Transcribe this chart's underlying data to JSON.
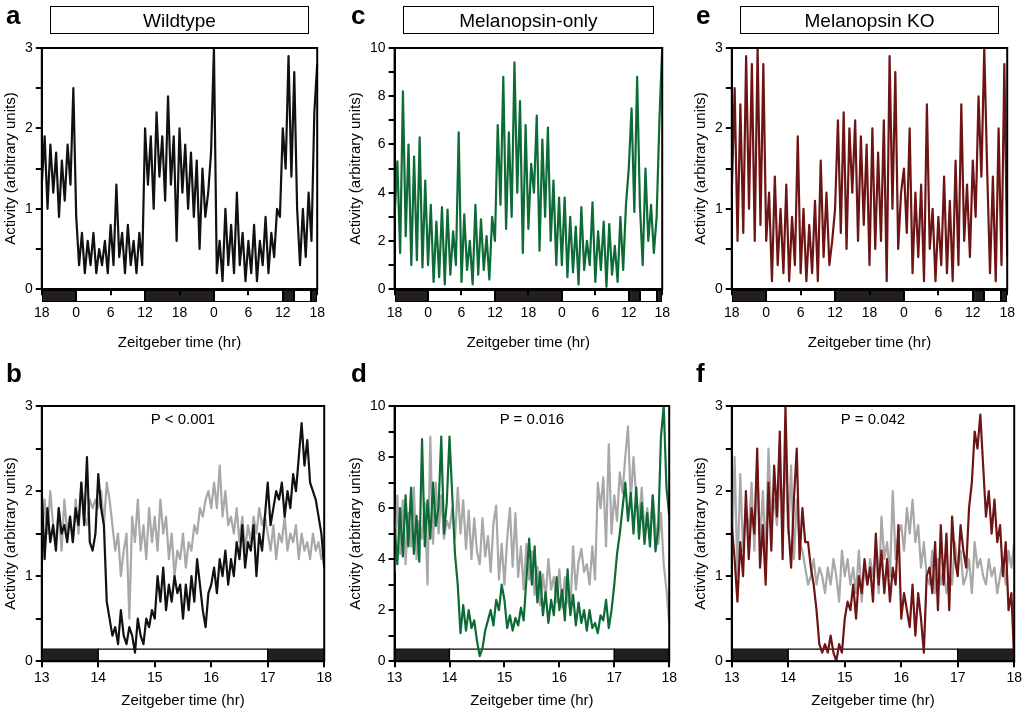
{
  "chart_data": [
    {
      "type": "line",
      "title": "Wildtype",
      "annotations": [
        "a"
      ],
      "xlabel": "Zeitgeber time (hr)",
      "ylabel": "Activity (arbitrary units)",
      "grid": false,
      "categories": [
        "18",
        null,
        null,
        null,
        null,
        null,
        null,
        null,
        null,
        null,
        null,
        null,
        "0",
        null,
        null,
        null,
        null,
        null,
        null,
        null,
        null,
        null,
        null,
        null,
        "6",
        null,
        null,
        null,
        null,
        null,
        null,
        null,
        null,
        null,
        null,
        null,
        "12",
        null,
        null,
        null,
        null,
        null,
        null,
        null,
        null,
        null,
        null,
        null,
        "18",
        null,
        null,
        null,
        null,
        null,
        null,
        null,
        null,
        null,
        null,
        null,
        "0",
        null,
        null,
        null,
        null,
        null,
        null,
        null,
        null,
        null,
        null,
        null,
        "6",
        null,
        null,
        null,
        null,
        null,
        null,
        null,
        null,
        null,
        null,
        null,
        "12",
        null,
        null,
        null,
        null,
        null,
        null,
        null,
        null,
        null,
        null,
        null,
        "18"
      ],
      "ylim": [
        0,
        3
      ],
      "yticks": [
        0,
        {
          "value": 0.5,
          "label": null
        },
        1,
        {
          "value": 1.5,
          "label": null
        },
        2,
        {
          "value": 2.5,
          "label": null
        },
        3
      ],
      "series": [
        {
          "color": "#111111",
          "values": [
            1.3,
            1.9,
            1.0,
            1.8,
            1.2,
            1.7,
            0.9,
            1.6,
            1.1,
            1.8,
            1.3,
            2.5,
            0.9,
            0.3,
            0.7,
            0.2,
            0.6,
            0.3,
            0.7,
            0.2,
            0.5,
            0.3,
            0.6,
            0.2,
            0.8,
            0.3,
            1.3,
            0.4,
            0.7,
            0.2,
            0.8,
            0.3,
            0.6,
            0.2,
            0.7,
            0.3,
            2.0,
            1.3,
            1.9,
            1.0,
            2.2,
            1.4,
            1.9,
            1.1,
            2.4,
            1.3,
            1.9,
            0.6,
            2.0,
            1.2,
            1.8,
            1.0,
            1.7,
            0.9,
            1.6,
            0.5,
            1.5,
            0.9,
            1.2,
            1.7,
            3.0,
            0.2,
            0.6,
            0.1,
            1.0,
            0.3,
            0.8,
            0.2,
            1.2,
            0.3,
            0.7,
            0.1,
            0.6,
            0.2,
            0.8,
            0.1,
            0.6,
            0.3,
            0.9,
            0.2,
            0.7,
            0.4,
            1.0,
            0.9,
            2.0,
            1.5,
            2.9,
            1.4,
            2.7,
            1.0,
            0.3,
            1.0,
            0.4,
            1.2,
            0.6,
            2.2,
            2.8
          ]
        }
      ]
    },
    {
      "type": "line",
      "title": "Melanopsin-only",
      "annotations": [
        "c"
      ],
      "xlabel": "Zeitgeber time (hr)",
      "ylabel": "Activity (arbitrary units)",
      "grid": false,
      "categories": [
        "18",
        null,
        null,
        null,
        null,
        null,
        null,
        null,
        null,
        null,
        null,
        null,
        "0",
        null,
        null,
        null,
        null,
        null,
        null,
        null,
        null,
        null,
        null,
        null,
        "6",
        null,
        null,
        null,
        null,
        null,
        null,
        null,
        null,
        null,
        null,
        null,
        "12",
        null,
        null,
        null,
        null,
        null,
        null,
        null,
        null,
        null,
        null,
        null,
        "18",
        null,
        null,
        null,
        null,
        null,
        null,
        null,
        null,
        null,
        null,
        null,
        "0",
        null,
        null,
        null,
        null,
        null,
        null,
        null,
        null,
        null,
        null,
        null,
        "6",
        null,
        null,
        null,
        null,
        null,
        null,
        null,
        null,
        null,
        null,
        null,
        "12",
        null,
        null,
        null,
        null,
        null,
        null,
        null,
        null,
        null,
        null,
        null,
        "18"
      ],
      "ylim": [
        0,
        10
      ],
      "yticks": [
        0,
        {
          "value": 1,
          "label": null
        },
        2,
        {
          "value": 3,
          "label": null
        },
        4,
        {
          "value": 5,
          "label": null
        },
        6,
        {
          "value": 7,
          "label": null
        },
        8,
        {
          "value": 9,
          "label": null
        },
        10
      ],
      "series": [
        {
          "color": "#0d6b35",
          "values": [
            3.0,
            5.3,
            1.5,
            8.2,
            2.2,
            6.0,
            1.0,
            5.5,
            1.2,
            6.3,
            0.9,
            4.5,
            1.0,
            3.5,
            0.3,
            2.8,
            0.5,
            3.4,
            0.2,
            3.3,
            0.6,
            2.4,
            1.0,
            6.5,
            0.3,
            3.1,
            0.8,
            2.0,
            0.2,
            3.5,
            0.6,
            2.9,
            0.8,
            2.2,
            0.4,
            3.0,
            2.0,
            6.8,
            3.5,
            8.8,
            2.5,
            6.5,
            3.0,
            9.4,
            4.0,
            7.8,
            1.5,
            6.8,
            2.5,
            5.2,
            4.0,
            7.2,
            1.6,
            6.2,
            3.0,
            6.7,
            2.0,
            4.5,
            1.0,
            3.8,
            1.0,
            3.8,
            0.5,
            3.0,
            0.7,
            2.6,
            0.2,
            3.4,
            0.8,
            2.0,
            1.0,
            3.6,
            0.3,
            2.4,
            0.8,
            2.8,
            0.1,
            2.7,
            0.6,
            1.8,
            0.3,
            3.0,
            0.8,
            3.5,
            5.0,
            7.5,
            3.2,
            8.8,
            3.5,
            1.0,
            5.0,
            2.0,
            3.5,
            1.5,
            3.0,
            7.0,
            10.0
          ]
        }
      ]
    },
    {
      "type": "line",
      "title": "Melanopsin KO",
      "annotations": [
        "e"
      ],
      "xlabel": "Zeitgeber time (hr)",
      "ylabel": "Activity (arbitrary units)",
      "grid": false,
      "categories": [
        "18",
        null,
        null,
        null,
        null,
        null,
        null,
        null,
        null,
        null,
        null,
        null,
        "0",
        null,
        null,
        null,
        null,
        null,
        null,
        null,
        null,
        null,
        null,
        null,
        "6",
        null,
        null,
        null,
        null,
        null,
        null,
        null,
        null,
        null,
        null,
        null,
        "12",
        null,
        null,
        null,
        null,
        null,
        null,
        null,
        null,
        null,
        null,
        null,
        "18",
        null,
        null,
        null,
        null,
        null,
        null,
        null,
        null,
        null,
        null,
        null,
        "0",
        null,
        null,
        null,
        null,
        null,
        null,
        null,
        null,
        null,
        null,
        null,
        "6",
        null,
        null,
        null,
        null,
        null,
        null,
        null,
        null,
        null,
        null,
        null,
        "12",
        null,
        null,
        null,
        null,
        null,
        null,
        null,
        null,
        null,
        null,
        null,
        "18"
      ],
      "ylim": [
        0,
        3
      ],
      "yticks": [
        0,
        {
          "value": 0.5,
          "label": null
        },
        1,
        {
          "value": 1.5,
          "label": null
        },
        2,
        {
          "value": 2.5,
          "label": null
        },
        3
      ],
      "series": [
        {
          "color": "#6e1414",
          "values": [
            1.2,
            2.5,
            0.6,
            2.3,
            0.7,
            2.9,
            1.0,
            2.8,
            0.6,
            3.0,
            0.8,
            2.8,
            0.6,
            1.2,
            0.1,
            1.4,
            0.3,
            1.0,
            0.2,
            1.3,
            0.1,
            0.9,
            0.3,
            1.9,
            0.2,
            1.0,
            0.1,
            0.8,
            0.2,
            1.1,
            0.1,
            1.6,
            0.4,
            1.2,
            0.3,
            0.6,
            1.0,
            2.1,
            0.7,
            2.2,
            0.5,
            2.0,
            1.2,
            2.1,
            0.6,
            1.9,
            0.8,
            1.8,
            0.3,
            2.0,
            0.5,
            1.7,
            0.6,
            2.1,
            0.1,
            2.9,
            1.0,
            2.7,
            0.5,
            1.2,
            1.5,
            0.7,
            2.0,
            0.2,
            1.2,
            0.4,
            1.3,
            0.1,
            2.3,
            0.5,
            1.0,
            0.1,
            0.9,
            0.3,
            1.4,
            0.2,
            1.1,
            0.1,
            1.6,
            0.3,
            2.3,
            0.6,
            1.3,
            0.4,
            1.6,
            0.9,
            2.4,
            1.4,
            3.0,
            1.5,
            0.2,
            1.4,
            0.1,
            2.0,
            0.3,
            2.8,
            0.4
          ]
        }
      ]
    },
    {
      "type": "line",
      "annotations": [
        "b",
        "P < 0.001"
      ],
      "xlabel": "Zeitgeber time (hr)",
      "ylabel": "Activity (arbitrary units)",
      "grid": false,
      "x": [
        13,
        13.05,
        13.1,
        13.15,
        13.2,
        13.25,
        13.3,
        13.35,
        13.4,
        13.45,
        13.5,
        13.55,
        13.6,
        13.65,
        13.7,
        13.75,
        13.8,
        13.85,
        13.9,
        13.95,
        14,
        14.05,
        14.1,
        14.15,
        14.2,
        14.25,
        14.3,
        14.35,
        14.4,
        14.45,
        14.5,
        14.55,
        14.6,
        14.65,
        14.7,
        14.75,
        14.8,
        14.85,
        14.9,
        14.95,
        15,
        15.05,
        15.1,
        15.15,
        15.2,
        15.25,
        15.3,
        15.35,
        15.4,
        15.45,
        15.5,
        15.55,
        15.6,
        15.65,
        15.7,
        15.75,
        15.8,
        15.85,
        15.9,
        15.95,
        16,
        16.05,
        16.1,
        16.15,
        16.2,
        16.25,
        16.3,
        16.35,
        16.4,
        16.45,
        16.5,
        16.55,
        16.6,
        16.65,
        16.7,
        16.75,
        16.8,
        16.85,
        16.9,
        16.95,
        17,
        17.05,
        17.1,
        17.15,
        17.2,
        17.25,
        17.3,
        17.35,
        17.4,
        17.45,
        17.5,
        17.55,
        17.6,
        17.65,
        17.7,
        17.75,
        17.8,
        17.85,
        17.9,
        17.95,
        18
      ],
      "xlim": [
        13,
        18
      ],
      "xticks": [
        13,
        14,
        15,
        16,
        17,
        18
      ],
      "ylim": [
        0,
        3
      ],
      "yticks": [
        0,
        {
          "value": 0.5,
          "label": null
        },
        1,
        {
          "value": 1.5,
          "label": null
        },
        2,
        {
          "value": 2.5,
          "label": null
        },
        3
      ],
      "bands": [
        {
          "axis": "x",
          "from": 13,
          "to": 14,
          "color": "#231f20"
        },
        {
          "axis": "x",
          "from": 14,
          "to": 17,
          "color": "#ffffff"
        },
        {
          "axis": "x",
          "from": 17,
          "to": 18,
          "color": "#231f20"
        }
      ],
      "series": [
        {
          "color": "#a8a8a8",
          "values": [
            1.4,
            1.9,
            1.5,
            2.0,
            1.6,
            1.4,
            1.8,
            1.3,
            1.9,
            1.5,
            1.7,
            1.4,
            1.9,
            1.5,
            2.1,
            1.7,
            1.6,
            1.9,
            1.8,
            1.9,
            1.8,
            2.0,
            1.6,
            2.1,
            1.9,
            1.6,
            1.3,
            1.5,
            1.0,
            1.3,
            1.5,
            0.5,
            1.7,
            1.4,
            1.9,
            1.3,
            1.6,
            1.2,
            1.8,
            1.4,
            1.7,
            1.3,
            1.9,
            1.5,
            1.7,
            1.2,
            1.5,
            1.0,
            1.3,
            1.2,
            1.5,
            1.1,
            1.4,
            1.3,
            1.6,
            1.5,
            1.8,
            1.7,
            1.9,
            2.0,
            1.8,
            2.1,
            1.8,
            2.3,
            1.7,
            2.0,
            1.6,
            1.7,
            1.5,
            1.8,
            1.4,
            1.7,
            1.3,
            1.6,
            1.4,
            1.7,
            1.5,
            1.8,
            1.6,
            1.7,
            1.5,
            1.3,
            1.6,
            1.2,
            1.5,
            1.4,
            1.7,
            1.3,
            1.5,
            1.4,
            1.6,
            1.2,
            1.5,
            1.3,
            1.4,
            1.2,
            1.5,
            1.3,
            1.4,
            1.2,
            1.3
          ]
        },
        {
          "color": "#111111",
          "values": [
            2.0,
            1.2,
            1.8,
            1.4,
            1.6,
            1.3,
            1.8,
            1.5,
            1.6,
            1.4,
            1.7,
            1.4,
            1.8,
            1.6,
            2.1,
            1.6,
            2.4,
            1.4,
            1.3,
            1.5,
            2.2,
            1.8,
            1.6,
            0.7,
            0.5,
            0.3,
            0.4,
            0.2,
            0.6,
            0.3,
            0.2,
            0.4,
            0.3,
            0.1,
            0.5,
            0.3,
            0.2,
            0.5,
            0.4,
            0.6,
            0.5,
            1.0,
            0.7,
            1.1,
            0.6,
            0.9,
            0.7,
            1.0,
            0.8,
            0.9,
            0.5,
            0.9,
            0.6,
            1.0,
            0.7,
            1.2,
            0.9,
            0.6,
            0.4,
            0.8,
            0.9,
            1.1,
            0.8,
            1.2,
            1.0,
            1.3,
            0.9,
            1.2,
            1.0,
            1.4,
            1.2,
            1.6,
            1.1,
            1.4,
            1.3,
            1.6,
            1.0,
            1.5,
            1.3,
            1.7,
            2.1,
            1.6,
            1.8,
            2.0,
            1.9,
            2.1,
            1.7,
            2.0,
            1.8,
            2.2,
            2.0,
            2.4,
            2.8,
            2.3,
            2.6,
            2.1,
            2.0,
            1.9,
            1.7,
            1.5,
            1.1
          ]
        }
      ]
    },
    {
      "type": "line",
      "annotations": [
        "d",
        "P = 0.016"
      ],
      "xlabel": "Zeitgeber time (hr)",
      "ylabel": "Activity (arbitrary units)",
      "grid": false,
      "x": [
        13,
        13.05,
        13.1,
        13.15,
        13.2,
        13.25,
        13.3,
        13.35,
        13.4,
        13.45,
        13.5,
        13.55,
        13.6,
        13.65,
        13.7,
        13.75,
        13.8,
        13.85,
        13.9,
        13.95,
        14,
        14.05,
        14.1,
        14.15,
        14.2,
        14.25,
        14.3,
        14.35,
        14.4,
        14.45,
        14.5,
        14.55,
        14.6,
        14.65,
        14.7,
        14.75,
        14.8,
        14.85,
        14.9,
        14.95,
        15,
        15.05,
        15.1,
        15.15,
        15.2,
        15.25,
        15.3,
        15.35,
        15.4,
        15.45,
        15.5,
        15.55,
        15.6,
        15.65,
        15.7,
        15.75,
        15.8,
        15.85,
        15.9,
        15.95,
        16,
        16.05,
        16.1,
        16.15,
        16.2,
        16.25,
        16.3,
        16.35,
        16.4,
        16.45,
        16.5,
        16.55,
        16.6,
        16.65,
        16.7,
        16.75,
        16.8,
        16.85,
        16.9,
        16.95,
        17,
        17.05,
        17.1,
        17.15,
        17.2,
        17.25,
        17.3,
        17.35,
        17.4,
        17.45,
        17.5,
        17.55,
        17.6,
        17.65,
        17.7,
        17.75,
        17.8,
        17.85,
        17.9,
        17.95,
        18
      ],
      "xlim": [
        13,
        18
      ],
      "xticks": [
        13,
        14,
        15,
        16,
        17,
        18
      ],
      "ylim": [
        0,
        10
      ],
      "yticks": [
        0,
        {
          "value": 1,
          "label": null
        },
        2,
        {
          "value": 3,
          "label": null
        },
        4,
        {
          "value": 5,
          "label": null
        },
        6,
        {
          "value": 7,
          "label": null
        },
        8,
        {
          "value": 9,
          "label": null
        },
        10
      ],
      "bands": [
        {
          "axis": "x",
          "from": 13,
          "to": 14,
          "color": "#231f20"
        },
        {
          "axis": "x",
          "from": 14,
          "to": 17,
          "color": "#ffffff"
        },
        {
          "axis": "x",
          "from": 17,
          "to": 18,
          "color": "#231f20"
        }
      ],
      "series": [
        {
          "color": "#a8a8a8",
          "values": [
            3.5,
            6.5,
            4.2,
            6.3,
            3.8,
            5.8,
            4.5,
            6.8,
            4.0,
            5.5,
            4.8,
            6.2,
            3.0,
            8.8,
            4.6,
            7.0,
            5.0,
            6.5,
            4.8,
            5.5,
            5.2,
            6.0,
            4.8,
            6.8,
            5.0,
            6.3,
            4.4,
            5.9,
            4.0,
            5.6,
            4.3,
            3.8,
            5.6,
            4.1,
            4.9,
            3.5,
            5.4,
            6.1,
            3.2,
            4.6,
            3.0,
            4.8,
            6.0,
            3.7,
            5.8,
            3.3,
            4.5,
            2.8,
            4.6,
            3.2,
            4.3,
            2.6,
            3.7,
            2.2,
            3.4,
            2.5,
            4.0,
            2.8,
            3.3,
            2.3,
            3.6,
            2.1,
            3.3,
            2.4,
            2.0,
            4.5,
            2.8,
            3.9,
            4.4,
            3.5,
            3.8,
            3.0,
            4.5,
            3.2,
            7.0,
            6.0,
            7.2,
            4.5,
            8.5,
            5.0,
            6.5,
            5.5,
            7.4,
            6.6,
            8.0,
            9.2,
            6.3,
            8.0,
            6.4,
            5.5,
            6.8,
            5.0,
            6.0,
            4.8,
            6.5,
            5.3,
            4.6,
            5.8,
            3.8,
            2.8,
            1.5
          ]
        },
        {
          "color": "#0d6b35",
          "values": [
            5.2,
            3.8,
            6.0,
            4.1,
            6.5,
            4.5,
            6.8,
            4.2,
            5.7,
            3.9,
            8.7,
            4.5,
            6.3,
            4.8,
            7.0,
            5.3,
            6.0,
            8.8,
            5.0,
            6.2,
            8.8,
            6.5,
            4.2,
            3.0,
            1.1,
            2.2,
            1.2,
            2.0,
            1.3,
            1.6,
            0.8,
            0.2,
            0.5,
            1.2,
            1.6,
            2.0,
            1.4,
            2.4,
            2.0,
            3.0,
            2.4,
            1.3,
            1.8,
            1.2,
            1.7,
            1.4,
            2.1,
            1.6,
            3.2,
            4.8,
            3.0,
            4.5,
            2.3,
            3.5,
            1.8,
            2.7,
            1.5,
            2.4,
            1.8,
            3.3,
            2.0,
            2.8,
            1.6,
            3.6,
            1.8,
            2.6,
            1.4,
            2.3,
            1.5,
            2.0,
            1.2,
            2.0,
            1.3,
            1.5,
            1.1,
            1.8,
            1.6,
            2.4,
            1.3,
            2.0,
            3.0,
            4.2,
            5.0,
            6.0,
            7.0,
            5.5,
            6.6,
            5.0,
            6.8,
            4.8,
            6.2,
            4.6,
            5.8,
            4.5,
            6.5,
            4.3,
            5.2,
            8.8,
            10.0,
            6.8,
            5.7
          ]
        }
      ]
    },
    {
      "type": "line",
      "annotations": [
        "f",
        "P = 0.042"
      ],
      "xlabel": "Zeitgeber time (hr)",
      "ylabel": "Activity (arbitrary units)",
      "grid": false,
      "x": [
        13,
        13.05,
        13.1,
        13.15,
        13.2,
        13.25,
        13.3,
        13.35,
        13.4,
        13.45,
        13.5,
        13.55,
        13.6,
        13.65,
        13.7,
        13.75,
        13.8,
        13.85,
        13.9,
        13.95,
        14,
        14.05,
        14.1,
        14.15,
        14.2,
        14.25,
        14.3,
        14.35,
        14.4,
        14.45,
        14.5,
        14.55,
        14.6,
        14.65,
        14.7,
        14.75,
        14.8,
        14.85,
        14.9,
        14.95,
        15,
        15.05,
        15.1,
        15.15,
        15.2,
        15.25,
        15.3,
        15.35,
        15.4,
        15.45,
        15.5,
        15.55,
        15.6,
        15.65,
        15.7,
        15.75,
        15.8,
        15.85,
        15.9,
        15.95,
        16,
        16.05,
        16.1,
        16.15,
        16.2,
        16.25,
        16.3,
        16.35,
        16.4,
        16.45,
        16.5,
        16.55,
        16.6,
        16.65,
        16.7,
        16.75,
        16.8,
        16.85,
        16.9,
        16.95,
        17,
        17.05,
        17.1,
        17.15,
        17.2,
        17.25,
        17.3,
        17.35,
        17.4,
        17.45,
        17.5,
        17.55,
        17.6,
        17.65,
        17.7,
        17.75,
        17.8,
        17.85,
        17.9,
        17.95,
        18
      ],
      "xlim": [
        13,
        18
      ],
      "xticks": [
        13,
        14,
        15,
        16,
        17,
        18
      ],
      "ylim": [
        0,
        3
      ],
      "yticks": [
        0,
        {
          "value": 0.5,
          "label": null
        },
        1,
        {
          "value": 1.5,
          "label": null
        },
        2,
        {
          "value": 2.5,
          "label": null
        },
        3
      ],
      "bands": [
        {
          "axis": "x",
          "from": 13,
          "to": 14,
          "color": "#231f20"
        },
        {
          "axis": "x",
          "from": 14,
          "to": 17,
          "color": "#ffffff"
        },
        {
          "axis": "x",
          "from": 17,
          "to": 18,
          "color": "#231f20"
        }
      ],
      "series": [
        {
          "color": "#a8a8a8",
          "values": [
            1.2,
            2.4,
            1.0,
            2.2,
            1.3,
            1.8,
            1.5,
            2.1,
            1.3,
            2.3,
            1.4,
            2.0,
            1.2,
            2.5,
            1.7,
            1.9,
            1.6,
            2.2,
            1.8,
            2.4,
            1.5,
            2.3,
            1.2,
            1.9,
            1.4,
            1.3,
            1.1,
            0.9,
            1.0,
            1.2,
            0.9,
            1.1,
            1.0,
            0.8,
            1.1,
            0.9,
            1.2,
            1.0,
            0.7,
            1.3,
            1.0,
            1.2,
            0.9,
            1.1,
            0.8,
            1.3,
            0.7,
            1.1,
            0.9,
            1.2,
            1.0,
            1.3,
            0.8,
            1.7,
            1.2,
            1.4,
            1.0,
            2.0,
            1.2,
            1.5,
            1.6,
            1.3,
            1.8,
            1.5,
            1.9,
            1.4,
            1.6,
            1.1,
            1.4,
            1.0,
            0.9,
            1.3,
            0.8,
            1.2,
            0.9,
            1.1,
            0.8,
            1.0,
            0.9,
            1.4,
            1.1,
            1.3,
            0.9,
            1.0,
            1.2,
            0.8,
            1.4,
            1.1,
            1.2,
            1.0,
            0.9,
            1.2,
            1.0,
            1.1,
            0.8,
            1.0,
            1.2,
            0.9,
            1.3,
            1.1,
            1.4
          ]
        },
        {
          "color": "#6e1414",
          "values": [
            1.6,
            1.2,
            0.7,
            1.4,
            1.0,
            2.0,
            1.2,
            1.8,
            1.5,
            2.5,
            1.1,
            1.6,
            0.9,
            2.1,
            1.3,
            2.3,
            1.7,
            2.7,
            1.2,
            3.0,
            1.6,
            1.1,
            1.9,
            2.5,
            1.2,
            1.8,
            1.4,
            1.4,
            1.1,
            0.9,
            0.6,
            0.2,
            0.1,
            0.2,
            0.1,
            0.3,
            0.1,
            0.0,
            0.2,
            0.1,
            0.5,
            0.7,
            0.6,
            0.9,
            0.5,
            1.0,
            0.8,
            1.2,
            0.9,
            1.1,
            0.7,
            1.5,
            0.9,
            1.3,
            0.8,
            1.2,
            0.7,
            1.1,
            0.9,
            1.6,
            0.5,
            0.8,
            0.6,
            0.4,
            0.9,
            0.3,
            0.8,
            0.5,
            0.1,
            1.0,
            1.1,
            0.8,
            1.4,
            0.6,
            1.6,
            0.9,
            1.5,
            0.6,
            1.7,
            1.2,
            1.0,
            1.6,
            1.3,
            1.1,
            1.8,
            2.1,
            2.7,
            2.5,
            2.9,
            2.3,
            1.7,
            2.0,
            1.5,
            1.9,
            1.4,
            1.6,
            1.0,
            1.4,
            0.6,
            0.8,
            0.0
          ]
        }
      ]
    }
  ]
}
